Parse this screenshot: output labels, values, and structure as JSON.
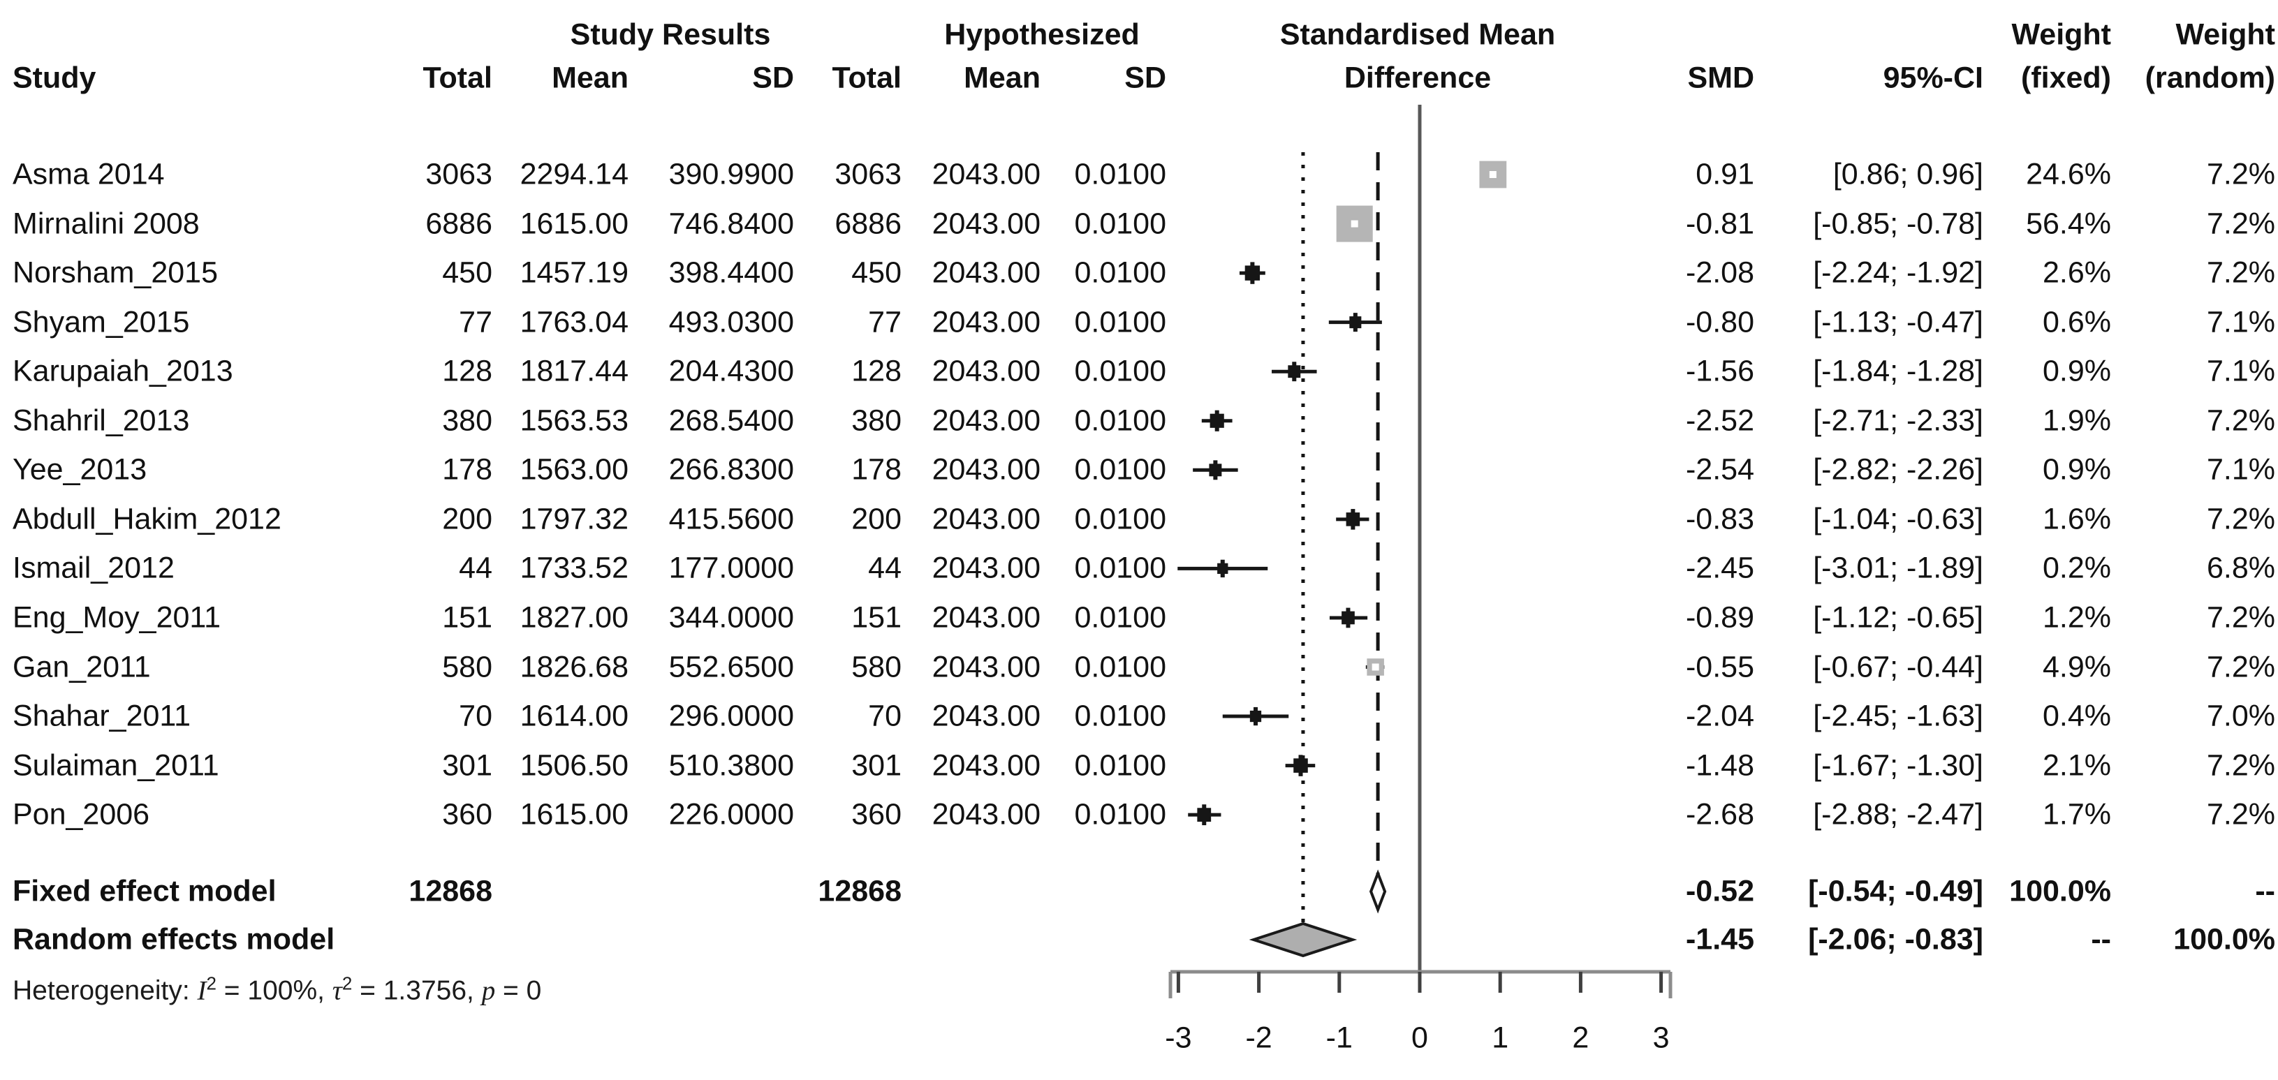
{
  "header": {
    "study": "Study",
    "group1_title": "Study Results",
    "group2_title": "Hypothesized",
    "plot_title_line1": "Standardised Mean",
    "plot_title_line2": "Difference",
    "col_total": "Total",
    "col_mean": "Mean",
    "col_sd": "SD",
    "col_smd": "SMD",
    "col_ci": "95%-CI",
    "weight_fixed_line1": "Weight",
    "weight_fixed_line2": "(fixed)",
    "weight_random_line1": "Weight",
    "weight_random_line2": "(random)"
  },
  "colors": {
    "text": "#111111",
    "marker_black": "#161616",
    "square_gray": "#b5b5b5",
    "square_dot": "#ffffff",
    "diamond_fixed_fill": "#ffffff",
    "diamond_random_fill": "#aeaeae",
    "diamond_stroke": "#1a1a1a",
    "axis": "#8c8c8c",
    "tick": "#3f3f3f",
    "zero_line": "#585858",
    "ref_line": "#141414"
  },
  "chart_data": {
    "type": "forest",
    "title": "Standardised Mean Difference",
    "x_axis": {
      "ticks": [
        -3,
        -2,
        -1,
        0,
        1,
        2,
        3
      ],
      "range": [
        -3.2,
        3.2
      ],
      "grid": false
    },
    "reference_lines": {
      "zero_solid": 0,
      "fixed_effect_dashed": -0.52,
      "random_effect_dotted": -1.45
    },
    "studies": [
      {
        "name": "Asma 2014",
        "total": "3063",
        "mean": "2294.14",
        "sd": "390.9900",
        "h_total": "3063",
        "h_mean": "2043.00",
        "h_sd": "0.0100",
        "smd": 0.91,
        "smd_text": "0.91",
        "lo": 0.86,
        "hi": 0.96,
        "ci_text": "[0.86; 0.96]",
        "w_fixed": "24.6%",
        "w_random": "7.2%",
        "w_fixed_num": 24.6
      },
      {
        "name": "Mirnalini 2008",
        "total": "6886",
        "mean": "1615.00",
        "sd": "746.8400",
        "h_total": "6886",
        "h_mean": "2043.00",
        "h_sd": "0.0100",
        "smd": -0.81,
        "smd_text": "-0.81",
        "lo": -0.85,
        "hi": -0.78,
        "ci_text": "[-0.85; -0.78]",
        "w_fixed": "56.4%",
        "w_random": "7.2%",
        "w_fixed_num": 56.4
      },
      {
        "name": "Norsham_2015",
        "total": "450",
        "mean": "1457.19",
        "sd": "398.4400",
        "h_total": "450",
        "h_mean": "2043.00",
        "h_sd": "0.0100",
        "smd": -2.08,
        "smd_text": "-2.08",
        "lo": -2.24,
        "hi": -1.92,
        "ci_text": "[-2.24; -1.92]",
        "w_fixed": "2.6%",
        "w_random": "7.2%",
        "w_fixed_num": 2.6
      },
      {
        "name": "Shyam_2015",
        "total": "77",
        "mean": "1763.04",
        "sd": "493.0300",
        "h_total": "77",
        "h_mean": "2043.00",
        "h_sd": "0.0100",
        "smd": -0.8,
        "smd_text": "-0.80",
        "lo": -1.13,
        "hi": -0.47,
        "ci_text": "[-1.13; -0.47]",
        "w_fixed": "0.6%",
        "w_random": "7.1%",
        "w_fixed_num": 0.6
      },
      {
        "name": "Karupaiah_2013",
        "total": "128",
        "mean": "1817.44",
        "sd": "204.4300",
        "h_total": "128",
        "h_mean": "2043.00",
        "h_sd": "0.0100",
        "smd": -1.56,
        "smd_text": "-1.56",
        "lo": -1.84,
        "hi": -1.28,
        "ci_text": "[-1.84; -1.28]",
        "w_fixed": "0.9%",
        "w_random": "7.1%",
        "w_fixed_num": 0.9
      },
      {
        "name": "Shahril_2013",
        "total": "380",
        "mean": "1563.53",
        "sd": "268.5400",
        "h_total": "380",
        "h_mean": "2043.00",
        "h_sd": "0.0100",
        "smd": -2.52,
        "smd_text": "-2.52",
        "lo": -2.71,
        "hi": -2.33,
        "ci_text": "[-2.71; -2.33]",
        "w_fixed": "1.9%",
        "w_random": "7.2%",
        "w_fixed_num": 1.9
      },
      {
        "name": "Yee_2013",
        "total": "178",
        "mean": "1563.00",
        "sd": "266.8300",
        "h_total": "178",
        "h_mean": "2043.00",
        "h_sd": "0.0100",
        "smd": -2.54,
        "smd_text": "-2.54",
        "lo": -2.82,
        "hi": -2.26,
        "ci_text": "[-2.82; -2.26]",
        "w_fixed": "0.9%",
        "w_random": "7.1%",
        "w_fixed_num": 0.9
      },
      {
        "name": "Abdull_Hakim_2012",
        "total": "200",
        "mean": "1797.32",
        "sd": "415.5600",
        "h_total": "200",
        "h_mean": "2043.00",
        "h_sd": "0.0100",
        "smd": -0.83,
        "smd_text": "-0.83",
        "lo": -1.04,
        "hi": -0.63,
        "ci_text": "[-1.04; -0.63]",
        "w_fixed": "1.6%",
        "w_random": "7.2%",
        "w_fixed_num": 1.6
      },
      {
        "name": "Ismail_2012",
        "total": "44",
        "mean": "1733.52",
        "sd": "177.0000",
        "h_total": "44",
        "h_mean": "2043.00",
        "h_sd": "0.0100",
        "smd": -2.45,
        "smd_text": "-2.45",
        "lo": -3.01,
        "hi": -1.89,
        "ci_text": "[-3.01; -1.89]",
        "w_fixed": "0.2%",
        "w_random": "6.8%",
        "w_fixed_num": 0.2
      },
      {
        "name": "Eng_Moy_2011",
        "total": "151",
        "mean": "1827.00",
        "sd": "344.0000",
        "h_total": "151",
        "h_mean": "2043.00",
        "h_sd": "0.0100",
        "smd": -0.89,
        "smd_text": "-0.89",
        "lo": -1.12,
        "hi": -0.65,
        "ci_text": "[-1.12; -0.65]",
        "w_fixed": "1.2%",
        "w_random": "7.2%",
        "w_fixed_num": 1.2
      },
      {
        "name": "Gan_2011",
        "total": "580",
        "mean": "1826.68",
        "sd": "552.6500",
        "h_total": "580",
        "h_mean": "2043.00",
        "h_sd": "0.0100",
        "smd": -0.55,
        "smd_text": "-0.55",
        "lo": -0.67,
        "hi": -0.44,
        "ci_text": "[-0.67; -0.44]",
        "w_fixed": "4.9%",
        "w_random": "7.2%",
        "w_fixed_num": 4.9
      },
      {
        "name": "Shahar_2011",
        "total": "70",
        "mean": "1614.00",
        "sd": "296.0000",
        "h_total": "70",
        "h_mean": "2043.00",
        "h_sd": "0.0100",
        "smd": -2.04,
        "smd_text": "-2.04",
        "lo": -2.45,
        "hi": -1.63,
        "ci_text": "[-2.45; -1.63]",
        "w_fixed": "0.4%",
        "w_random": "7.0%",
        "w_fixed_num": 0.4
      },
      {
        "name": "Sulaiman_2011",
        "total": "301",
        "mean": "1506.50",
        "sd": "510.3800",
        "h_total": "301",
        "h_mean": "2043.00",
        "h_sd": "0.0100",
        "smd": -1.48,
        "smd_text": "-1.48",
        "lo": -1.67,
        "hi": -1.3,
        "ci_text": "[-1.67; -1.30]",
        "w_fixed": "2.1%",
        "w_random": "7.2%",
        "w_fixed_num": 2.1
      },
      {
        "name": "Pon_2006",
        "total": "360",
        "mean": "1615.00",
        "sd": "226.0000",
        "h_total": "360",
        "h_mean": "2043.00",
        "h_sd": "0.0100",
        "smd": -2.68,
        "smd_text": "-2.68",
        "lo": -2.88,
        "hi": -2.47,
        "ci_text": "[-2.88; -2.47]",
        "w_fixed": "1.7%",
        "w_random": "7.2%",
        "w_fixed_num": 1.7
      }
    ],
    "summaries": [
      {
        "name": "Fixed effect model",
        "total": "12868",
        "h_total": "12868",
        "smd": -0.52,
        "smd_text": "-0.52",
        "lo": -0.54,
        "hi": -0.49,
        "ci_text": "[-0.54; -0.49]",
        "w_fixed": "100.0%",
        "w_random": "--",
        "style": "fixed"
      },
      {
        "name": "Random effects model",
        "total": "",
        "h_total": "",
        "smd": -1.45,
        "smd_text": "-1.45",
        "lo": -2.06,
        "hi": -0.83,
        "ci_text": "[-2.06; -0.83]",
        "w_fixed": "--",
        "w_random": "100.0%",
        "style": "random"
      }
    ],
    "heterogeneity": {
      "label": "Heterogeneity: ",
      "stat1_name": "I",
      "stat1_sup": "2",
      "stat1_rest": " = 100%, ",
      "stat2_name": "τ",
      "stat2_sup": "2",
      "stat2_rest": " = 1.3756, ",
      "stat3_name": "p",
      "stat3_rest": " = 0"
    }
  }
}
